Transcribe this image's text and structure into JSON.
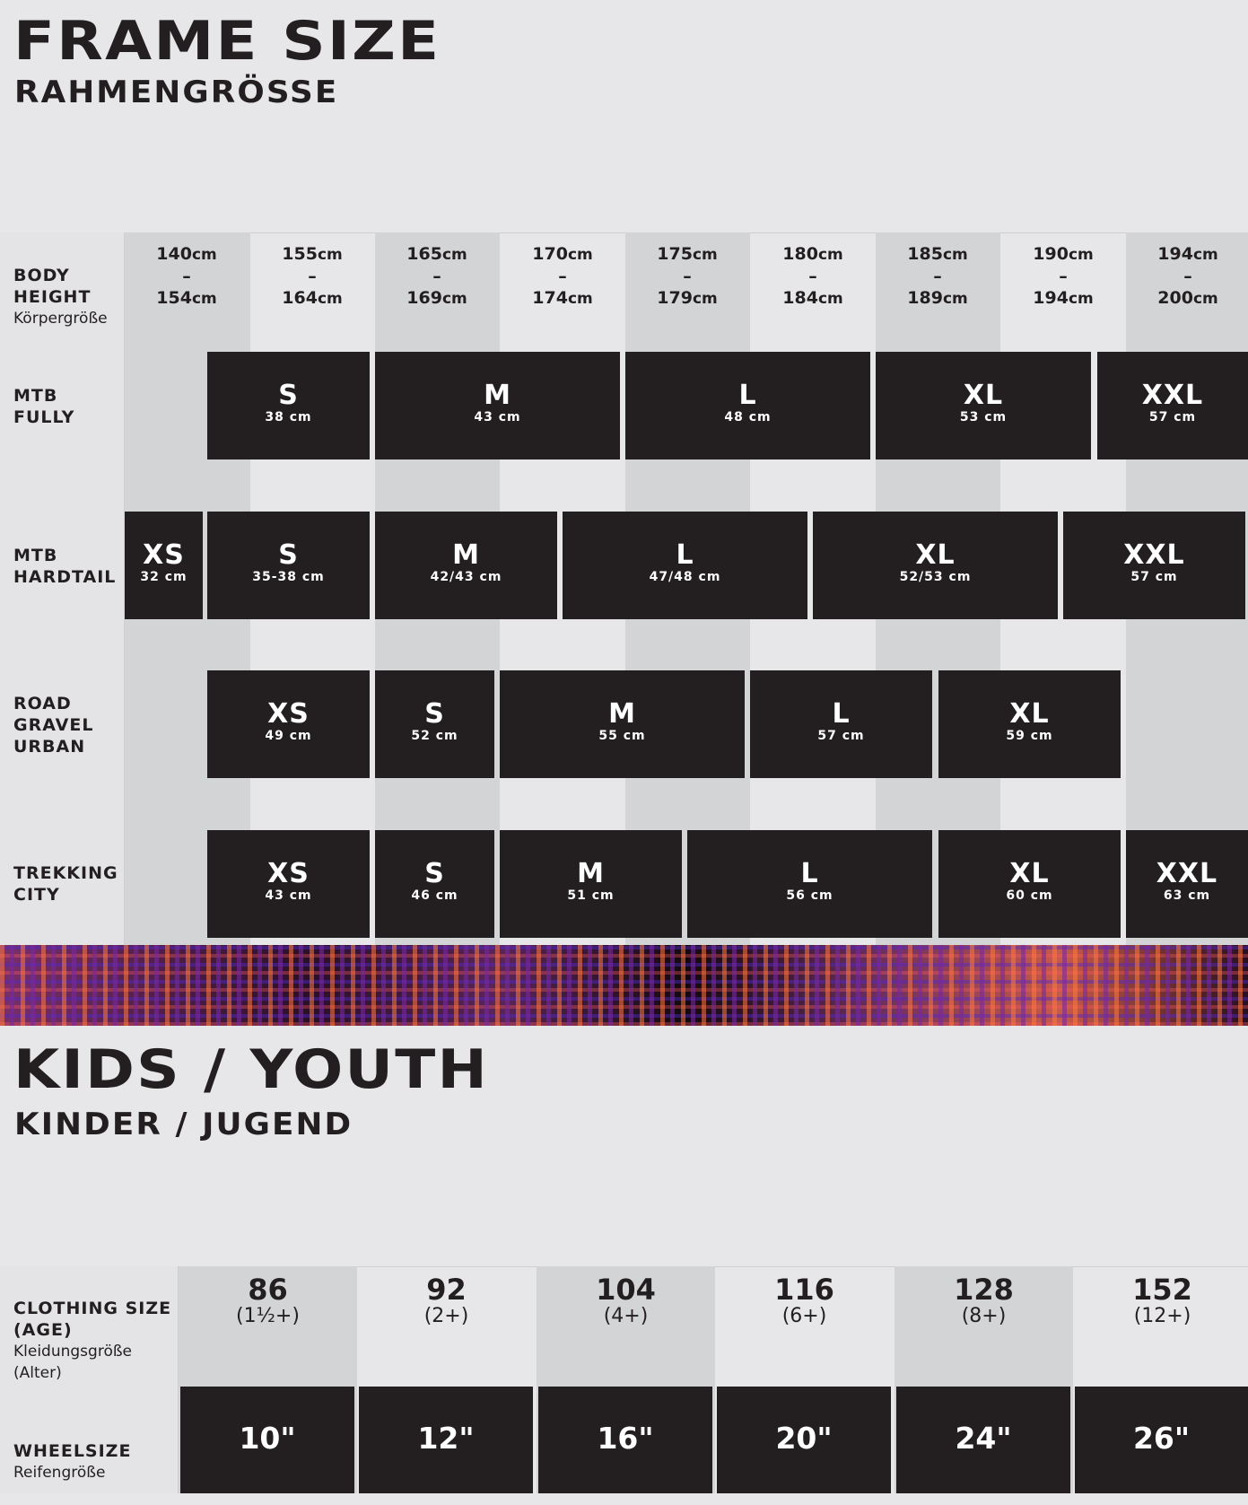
{
  "frame": {
    "title": "FRAME SIZE",
    "subtitle": "RAHMENGRÖSSE",
    "body_height_label": "BODY\nHEIGHT",
    "body_height_sub": "Körpergröße",
    "heights": [
      {
        "from": "140",
        "to": "154",
        "unit": "cm"
      },
      {
        "from": "155",
        "to": "164",
        "unit": "cm"
      },
      {
        "from": "165",
        "to": "169",
        "unit": "cm"
      },
      {
        "from": "170",
        "to": "174",
        "unit": "cm"
      },
      {
        "from": "175",
        "to": "179",
        "unit": "cm"
      },
      {
        "from": "180",
        "to": "184",
        "unit": "cm"
      },
      {
        "from": "185",
        "to": "189",
        "unit": "cm"
      },
      {
        "from": "190",
        "to": "194",
        "unit": "cm"
      },
      {
        "from": "194",
        "to": "200",
        "unit": "cm"
      }
    ],
    "dash": "–",
    "rows": [
      {
        "label": "MTB\nFULLY",
        "sizes": [
          {
            "size": "S",
            "cm": "38 cm"
          },
          {
            "size": "M",
            "cm": "43 cm"
          },
          {
            "size": "L",
            "cm": "48 cm"
          },
          {
            "size": "XL",
            "cm": "53 cm"
          },
          {
            "size": "XXL",
            "cm": "57 cm"
          }
        ]
      },
      {
        "label": "MTB\nHARDTAIL",
        "sizes": [
          {
            "size": "XS",
            "cm": "32 cm"
          },
          {
            "size": "S",
            "cm": "35-38 cm"
          },
          {
            "size": "M",
            "cm": "42/43 cm"
          },
          {
            "size": "L",
            "cm": "47/48 cm"
          },
          {
            "size": "XL",
            "cm": "52/53 cm"
          },
          {
            "size": "XXL",
            "cm": "57 cm"
          }
        ]
      },
      {
        "label": "ROAD\nGRAVEL\nURBAN",
        "sizes": [
          {
            "size": "XS",
            "cm": "49 cm"
          },
          {
            "size": "S",
            "cm": "52 cm"
          },
          {
            "size": "M",
            "cm": "55 cm"
          },
          {
            "size": "L",
            "cm": "57 cm"
          },
          {
            "size": "XL",
            "cm": "59 cm"
          }
        ]
      },
      {
        "label": "TREKKING\nCITY",
        "sizes": [
          {
            "size": "XS",
            "cm": "43 cm"
          },
          {
            "size": "S",
            "cm": "46 cm"
          },
          {
            "size": "M",
            "cm": "51 cm"
          },
          {
            "size": "L",
            "cm": "56 cm"
          },
          {
            "size": "XL",
            "cm": "60 cm"
          },
          {
            "size": "XXL",
            "cm": "63 cm"
          }
        ]
      }
    ]
  },
  "kids": {
    "title": "KIDS / YOUTH",
    "subtitle": "KINDER / JUGEND",
    "clothing_label": "CLOTHING SIZE\n(AGE)",
    "clothing_sub": "Kleidungsgröße\n(Alter)",
    "wheel_label": "WHEELSIZE",
    "wheel_sub": "Reifengröße",
    "columns": [
      {
        "size": "86",
        "age": "(1½+)",
        "wheel": "10\""
      },
      {
        "size": "92",
        "age": "(2+)",
        "wheel": "12\""
      },
      {
        "size": "104",
        "age": "(4+)",
        "wheel": "16\""
      },
      {
        "size": "116",
        "age": "(6+)",
        "wheel": "20\""
      },
      {
        "size": "128",
        "age": "(8+)",
        "wheel": "24\""
      },
      {
        "size": "152",
        "age": "(12+)",
        "wheel": "26\""
      }
    ]
  },
  "colors": {
    "dark": "#231f20",
    "light_bg": "#e7e7e9",
    "col_shade": "#d3d4d6"
  }
}
